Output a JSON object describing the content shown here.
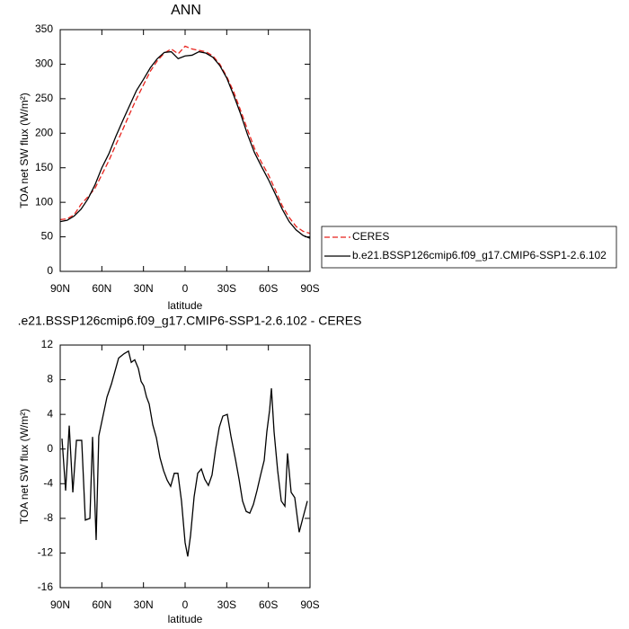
{
  "chart_data": [
    {
      "type": "line",
      "title": "ANN",
      "xlabel": "latitude",
      "ylabel": "TOA net SW flux (W/m²)",
      "xlim": [
        90,
        -90
      ],
      "ylim": [
        0,
        350
      ],
      "xticks": [
        {
          "value": 90,
          "label": "90N"
        },
        {
          "value": 60,
          "label": "60N"
        },
        {
          "value": 30,
          "label": "30N"
        },
        {
          "value": 0,
          "label": "0"
        },
        {
          "value": -30,
          "label": "30S"
        },
        {
          "value": -60,
          "label": "60S"
        },
        {
          "value": -90,
          "label": "90S"
        }
      ],
      "yticks": [
        0,
        50,
        100,
        150,
        200,
        250,
        300,
        350
      ],
      "x": [
        90,
        85,
        80,
        75,
        70,
        65,
        60,
        55,
        50,
        45,
        40,
        35,
        30,
        25,
        20,
        15,
        10,
        5,
        0,
        -5,
        -10,
        -15,
        -20,
        -25,
        -30,
        -35,
        -40,
        -45,
        -50,
        -55,
        -60,
        -65,
        -70,
        -75,
        -80,
        -85,
        -90
      ],
      "series": [
        {
          "name": "CERES",
          "color": "#e8221c",
          "style": "dashed",
          "values": [
            75,
            76,
            82,
            97,
            108,
            120,
            140,
            160,
            183,
            205,
            228,
            250,
            270,
            290,
            305,
            316,
            322,
            315,
            326,
            322,
            320,
            318,
            312,
            300,
            282,
            260,
            233,
            205,
            178,
            158,
            140,
            118,
            95,
            78,
            65,
            58,
            55
          ]
        },
        {
          "name": "b.e21.BSSP126cmip6.f09_g17.CMIP6-SSP1-2.6.102",
          "color": "#000000",
          "style": "solid",
          "values": [
            72,
            74,
            80,
            90,
            105,
            125,
            150,
            170,
            195,
            218,
            240,
            262,
            278,
            295,
            308,
            317,
            318,
            308,
            312,
            313,
            318,
            316,
            310,
            298,
            280,
            255,
            228,
            198,
            172,
            152,
            133,
            112,
            90,
            72,
            60,
            52,
            48
          ]
        }
      ]
    },
    {
      "type": "line",
      "title": ".e21.BSSP126cmip6.f09_g17.CMIP6-SSP1-2.6.102 - CERES",
      "xlabel": "latitude",
      "ylabel": "TOA net SW flux (W/m²)",
      "xlim": [
        90,
        -90
      ],
      "ylim": [
        -16,
        12
      ],
      "xticks": [
        {
          "value": 90,
          "label": "90N"
        },
        {
          "value": 60,
          "label": "60N"
        },
        {
          "value": 30,
          "label": "30N"
        },
        {
          "value": 0,
          "label": "0"
        },
        {
          "value": -30,
          "label": "30S"
        },
        {
          "value": -60,
          "label": "60S"
        },
        {
          "value": -90,
          "label": "90S"
        }
      ],
      "yticks": [
        12,
        8,
        4,
        0,
        -4,
        -8,
        -12,
        -16
      ],
      "x": [
        88.7,
        86.1,
        83.5,
        80.9,
        78.3,
        74.5,
        71.9,
        68.6,
        66.7,
        64.1,
        62.2,
        56.3,
        53.1,
        50.5,
        47.9,
        44.0,
        40.8,
        38.8,
        36.3,
        33.7,
        31.7,
        29.8,
        27.8,
        25.9,
        23.3,
        20.7,
        18.1,
        15.5,
        12.9,
        10.4,
        7.8,
        5.2,
        2.6,
        0,
        -1.9,
        -3.9,
        -6.5,
        -9.1,
        -11.7,
        -14.2,
        -16.8,
        -19.4,
        -22.0,
        -24.6,
        -27.2,
        -30.4,
        -33.0,
        -36.3,
        -38.9,
        -41.4,
        -44.0,
        -46.6,
        -49.2,
        -51.8,
        -54.4,
        -57.0,
        -58.9,
        -60.9,
        -62.2,
        -64.1,
        -66.7,
        -69.3,
        -71.9,
        -73.8,
        -76.4,
        -79.0,
        -82.2,
        -84.8,
        -88.1
      ],
      "series": [
        {
          "color": "#000000",
          "style": "solid",
          "values": [
            1.2,
            -4.8,
            2.7,
            -5,
            1,
            1,
            -8.2,
            -8,
            1.4,
            -10.5,
            1.5,
            6,
            7.5,
            9,
            10.5,
            11,
            11.3,
            10,
            10.3,
            9.3,
            7.8,
            7.3,
            6,
            5.2,
            2.8,
            1.3,
            -1,
            -2.5,
            -3.6,
            -4.3,
            -2.8,
            -2.8,
            -6,
            -10.8,
            -12.4,
            -10,
            -5.5,
            -2.8,
            -2.3,
            -3.5,
            -4.2,
            -3,
            0,
            2.5,
            3.8,
            4,
            1.5,
            -1.2,
            -3.5,
            -6,
            -7.2,
            -7.4,
            -6.4,
            -4.8,
            -3,
            -1.3,
            2,
            4.5,
            7,
            2,
            -2.5,
            -6,
            -6.6,
            -0.5,
            -5,
            -5.6,
            -9.6,
            -8,
            -6
          ]
        }
      ]
    }
  ]
}
